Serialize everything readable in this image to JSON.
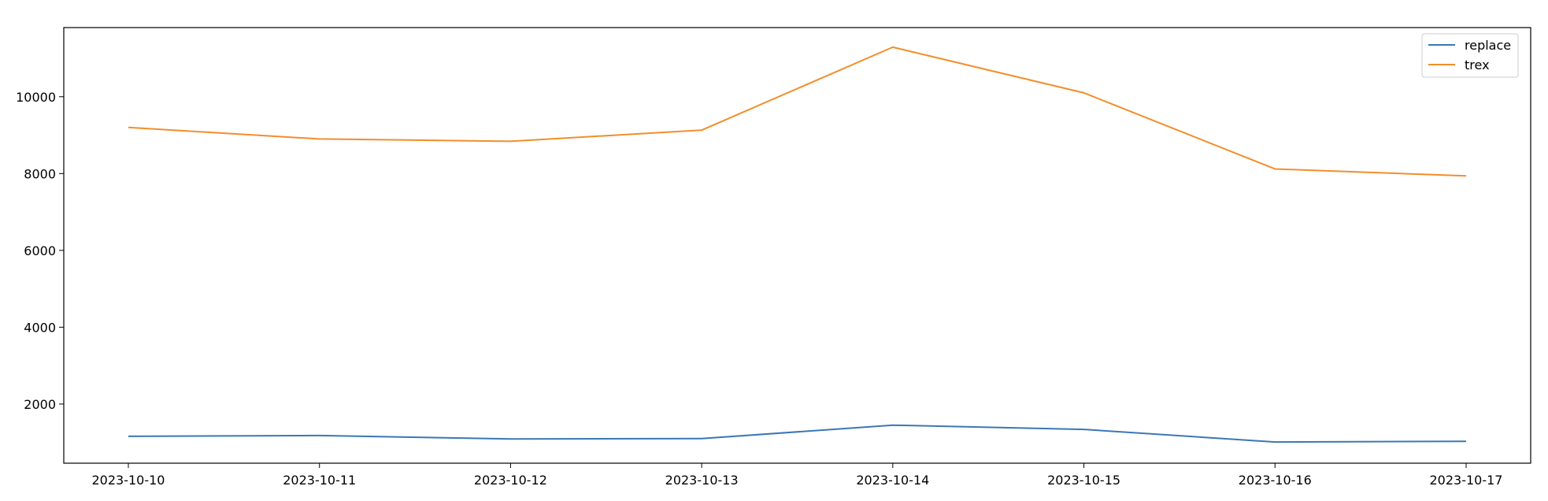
{
  "chart_data": {
    "type": "line",
    "x": [
      "2023-10-10",
      "2023-10-11",
      "2023-10-12",
      "2023-10-13",
      "2023-10-14",
      "2023-10-15",
      "2023-10-16",
      "2023-10-17"
    ],
    "series": [
      {
        "name": "replace",
        "color": "#3a78b4",
        "values": [
          1160,
          1180,
          1090,
          1100,
          1450,
          1340,
          1010,
          1030
        ]
      },
      {
        "name": "trex",
        "color": "#f28e2b",
        "values": [
          9200,
          8900,
          8840,
          9130,
          11290,
          10100,
          8120,
          7940
        ]
      }
    ],
    "yticks": [
      2000,
      4000,
      6000,
      8000,
      10000
    ],
    "ylim": [
      460,
      11800
    ],
    "legend": "top-right",
    "grid": false,
    "title": "",
    "xlabel": "",
    "ylabel": ""
  }
}
